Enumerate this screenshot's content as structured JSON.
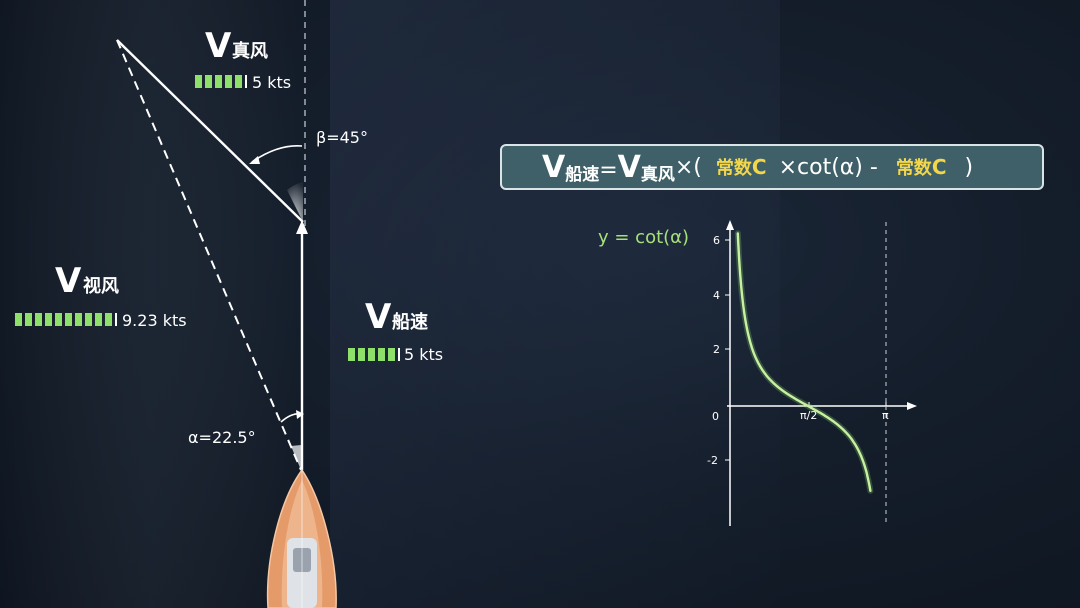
{
  "vectors": {
    "true_wind": {
      "symbol": "V",
      "subscript": "真风",
      "speed": "5 kts",
      "bar_segments": 5
    },
    "apparent_wind": {
      "symbol": "V",
      "subscript": "视风",
      "speed": "9.23 kts",
      "bar_segments": 10
    },
    "boat_speed": {
      "symbol": "V",
      "subscript": "船速",
      "speed": "5 kts",
      "bar_segments": 5
    }
  },
  "angles": {
    "beta": "β=45°",
    "alpha": "α=22.5°"
  },
  "formula": {
    "lhs_symbol": "V",
    "lhs_sub": "船速",
    "equals": "=",
    "rhs_symbol": "V",
    "rhs_sub": "真风",
    "times_open": "×(",
    "const1_prefix": "常数",
    "const1_letter": "C",
    "cot_term": "×cot(α) -",
    "const2_prefix": "常数",
    "const2_letter": "C",
    "close": ")"
  },
  "graph": {
    "title": "y = cot(α)",
    "y_ticks": [
      "6",
      "4",
      "2",
      "-2"
    ],
    "origin_label": "0",
    "x_ticks": [
      "π/2",
      "π"
    ]
  },
  "colors": {
    "bar_green": "#8fe06a",
    "curve_green": "#c8f0a0",
    "formula_bg": "#3f6068",
    "const_yellow": "#f2d64b",
    "boat_orange": "#e59a6a"
  },
  "chart_data": {
    "type": "line",
    "title": "y = cot(α)",
    "xlabel": "",
    "ylabel": "",
    "x": [
      0.16,
      0.2,
      0.3,
      0.5,
      0.7,
      1.0,
      1.2,
      1.5708,
      1.9,
      2.2,
      2.5,
      2.8
    ],
    "series": [
      {
        "name": "",
        "values": [
          6.2,
          4.93,
          3.23,
          1.83,
          1.19,
          0.64,
          0.39,
          0.0,
          -0.34,
          -0.73,
          -1.34,
          -2.82
        ]
      }
    ],
    "xlim": [
      0,
      3.4
    ],
    "ylim": [
      -3.5,
      6.7
    ],
    "asymptote_x": 3.14159
  }
}
